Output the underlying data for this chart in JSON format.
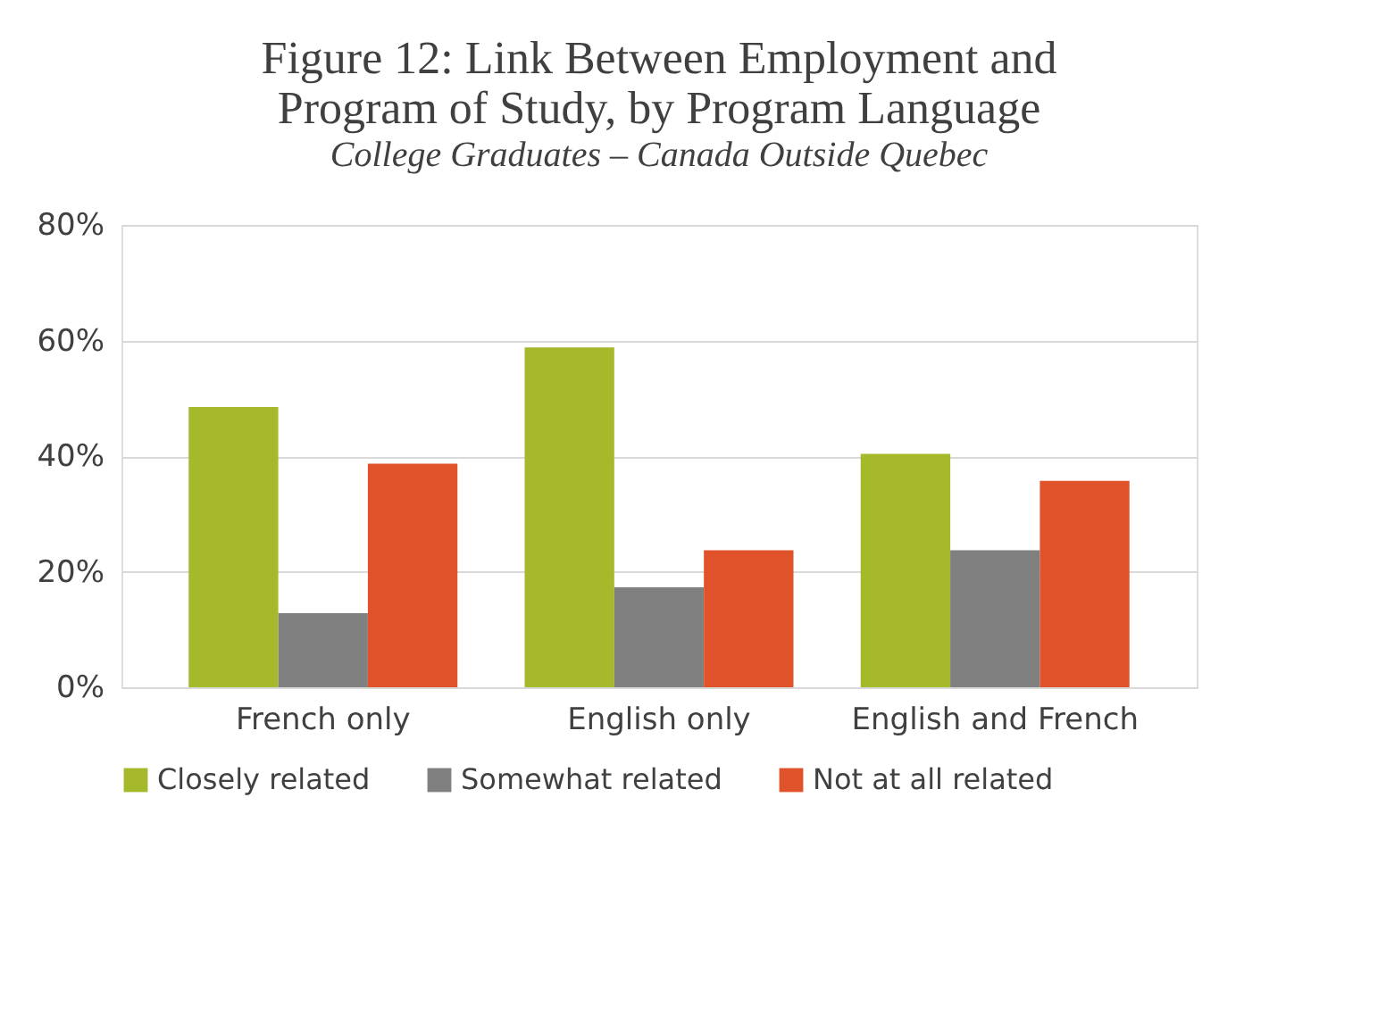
{
  "chart_data": {
    "type": "bar",
    "title": "Figure 12: Link Between Employment and Program of Study, by Program Language",
    "subtitle": "College Graduates – Canada Outside Quebec",
    "categories": [
      "French only",
      "English only",
      "English and French"
    ],
    "series": [
      {
        "name": "Closely related",
        "color": "#a5b92a",
        "values": [
          48.5,
          58.8,
          40.4
        ]
      },
      {
        "name": "Somewhat related",
        "color": "#808080",
        "values": [
          12.8,
          17.3,
          23.7
        ]
      },
      {
        "name": "Not at all related",
        "color": "#e0522a",
        "values": [
          38.7,
          23.7,
          35.7
        ]
      }
    ],
    "ylim": [
      0,
      80
    ],
    "yticks": [
      {
        "value": 0,
        "label": "0%"
      },
      {
        "value": 20,
        "label": "20%"
      },
      {
        "value": 40,
        "label": "40%"
      },
      {
        "value": 60,
        "label": "60%"
      },
      {
        "value": 80,
        "label": "80%"
      }
    ],
    "grid": "y",
    "legend": "bottom"
  }
}
